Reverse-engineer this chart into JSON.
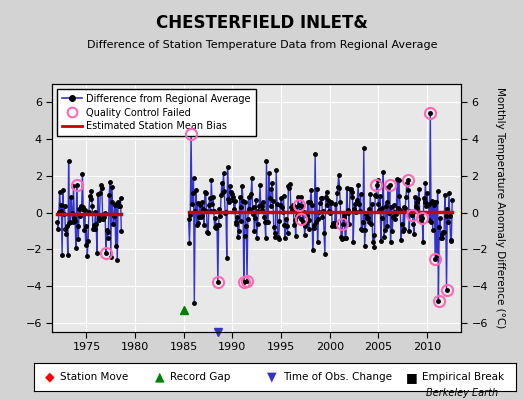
{
  "title": "CHESTERFIELD INLET&",
  "subtitle": "Difference of Station Temperature Data from Regional Average",
  "ylabel": "Monthly Temperature Anomaly Difference (°C)",
  "xlabel_credit": "Berkeley Earth",
  "bias1": -0.1,
  "bias2": 0.05,
  "ylim": [
    -6.5,
    7.0
  ],
  "xlim": [
    1971.5,
    2013.5
  ],
  "xticks": [
    1975,
    1980,
    1985,
    1990,
    1995,
    2000,
    2005,
    2010
  ],
  "yticks": [
    -6,
    -4,
    -2,
    0,
    2,
    4,
    6
  ],
  "bg_color": "#d3d3d3",
  "plot_bg": "#e8e8e8",
  "line_color": "#3333cc",
  "bias_color": "#cc0000",
  "qc_color": "#ff69b4",
  "seg1_start": 1972.0,
  "seg1_end": 1978.6,
  "seg2_start": 1985.5,
  "seg2_end": 2012.6,
  "record_gap_x": 1985.0,
  "record_gap_y": -5.3,
  "time_obs_x": 1988.5
}
